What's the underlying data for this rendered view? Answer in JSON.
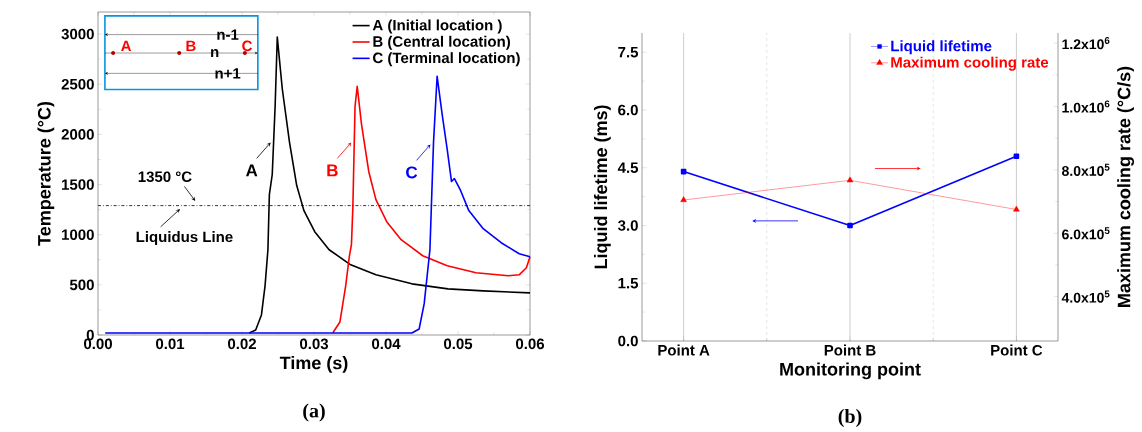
{
  "chart_data": [
    {
      "type": "line",
      "xlabel": "Time (s)",
      "ylabel": "Temperature (°C)",
      "xlim": [
        0,
        0.06
      ],
      "ylim": [
        0,
        3220
      ],
      "xticks": [
        {
          "value": 0,
          "label": "0.00"
        },
        {
          "value": 0.01,
          "label": "0.01"
        },
        {
          "value": 0.02,
          "label": "0.02"
        },
        {
          "value": 0.03,
          "label": "0.03"
        },
        {
          "value": 0.04,
          "label": "0.04"
        },
        {
          "value": 0.05,
          "label": "0.05"
        },
        {
          "value": 0.06,
          "label": "0.06"
        }
      ],
      "yticks": [
        0,
        500,
        1000,
        1500,
        2000,
        2500,
        3000
      ],
      "legend": "top right",
      "marker": "none",
      "line_style": "solid",
      "series": [
        {
          "name": "A (Initial location )",
          "color": "#000000",
          "x": [
            0.021,
            0.0219,
            0.0227,
            0.0232,
            0.0236,
            0.0238,
            0.0242,
            0.0246,
            0.0249,
            0.0256,
            0.0266,
            0.0276,
            0.0286,
            0.0301,
            0.0321,
            0.0351,
            0.0386,
            0.0436,
            0.0486,
            0.0535,
            0.06
          ],
          "values": [
            20,
            50,
            200,
            490,
            850,
            1400,
            1600,
            2280,
            2970,
            2450,
            1920,
            1490,
            1240,
            1030,
            850,
            700,
            600,
            510,
            460,
            440,
            420
          ]
        },
        {
          "name": "B (Central location)",
          "color": "#ff0000",
          "x": [
            0.0326,
            0.0336,
            0.0344,
            0.0349,
            0.0352,
            0.0354,
            0.0357,
            0.036,
            0.0366,
            0.0376,
            0.0386,
            0.0401,
            0.0421,
            0.0451,
            0.0485,
            0.0525,
            0.057,
            0.0585,
            0.0595,
            0.06
          ],
          "values": [
            20,
            130,
            490,
            780,
            900,
            1280,
            2280,
            2480,
            2100,
            1630,
            1350,
            1130,
            950,
            790,
            690,
            620,
            590,
            600,
            670,
            780
          ]
        },
        {
          "name": "C (Terminal location)",
          "color": "#0000ff",
          "x": [
            0.001,
            0.0436,
            0.0446,
            0.0453,
            0.0461,
            0.0466,
            0.0471,
            0.0478,
            0.0485,
            0.0491,
            0.0495,
            0.0503,
            0.0515,
            0.0535,
            0.056,
            0.0585,
            0.06
          ],
          "values": [
            20,
            20,
            60,
            310,
            850,
            1920,
            2580,
            2200,
            1850,
            1530,
            1560,
            1450,
            1240,
            1060,
            920,
            810,
            780
          ]
        }
      ],
      "ref_lines": [
        {
          "axis": "y",
          "value": 1290,
          "label": "Liquidus Line",
          "color": "#000000",
          "line_style": "dashdot"
        }
      ],
      "annotations": [
        {
          "text": "A",
          "x": 0.0244,
          "y": 1940
        },
        {
          "text": "B",
          "x": 0.0356,
          "y": 1940
        },
        {
          "text": "C",
          "x": 0.0466,
          "y": 1920
        },
        "n-1",
        "n",
        "n+1",
        "A",
        "B",
        "C",
        "1350 °C",
        "(a)"
      ]
    },
    {
      "type": "line",
      "categories": [
        "Point A",
        "Point B",
        "Point C"
      ],
      "xlabel": "Monitoring point",
      "ylabel": "Liquid lifetime (ms)",
      "y2label": "Maximum cooling rate (°C/s)",
      "ylim": [
        0,
        8
      ],
      "yticks": [
        {
          "value": 0,
          "label": "0.0"
        },
        {
          "value": 1.5,
          "label": "1.5"
        },
        {
          "value": 3,
          "label": "3.0"
        },
        {
          "value": 4.5,
          "label": "4.5"
        },
        {
          "value": 6,
          "label": "6.0"
        },
        {
          "value": 7.5,
          "label": "7.5"
        }
      ],
      "y2lim": [
        260000,
        1232000
      ],
      "y2ticks": [
        {
          "value": 400000,
          "label": "4.0x10$^{5}$"
        },
        {
          "value": 600000,
          "label": "6.0x10$^{5}$"
        },
        {
          "value": 800000,
          "label": "8.0x10$^{5}$"
        },
        {
          "value": 1000000,
          "label": "1.0x10$^{6}$"
        },
        {
          "value": 1200000,
          "label": "1.2x10$^{6}$"
        }
      ],
      "grid": "x",
      "legend": "top right",
      "line_style": "solid",
      "series": [
        {
          "name": "Liquid lifetime",
          "color": "#0000ff",
          "marker": "square",
          "values": [
            4.4,
            3.0,
            4.8
          ]
        },
        {
          "name": "Maximum cooling rate",
          "color": "#ff0000",
          "marker": "triangle",
          "axis": "y2",
          "values": [
            705000,
            767000,
            675000
          ]
        }
      ],
      "annotations": [
        "(b)"
      ]
    }
  ]
}
